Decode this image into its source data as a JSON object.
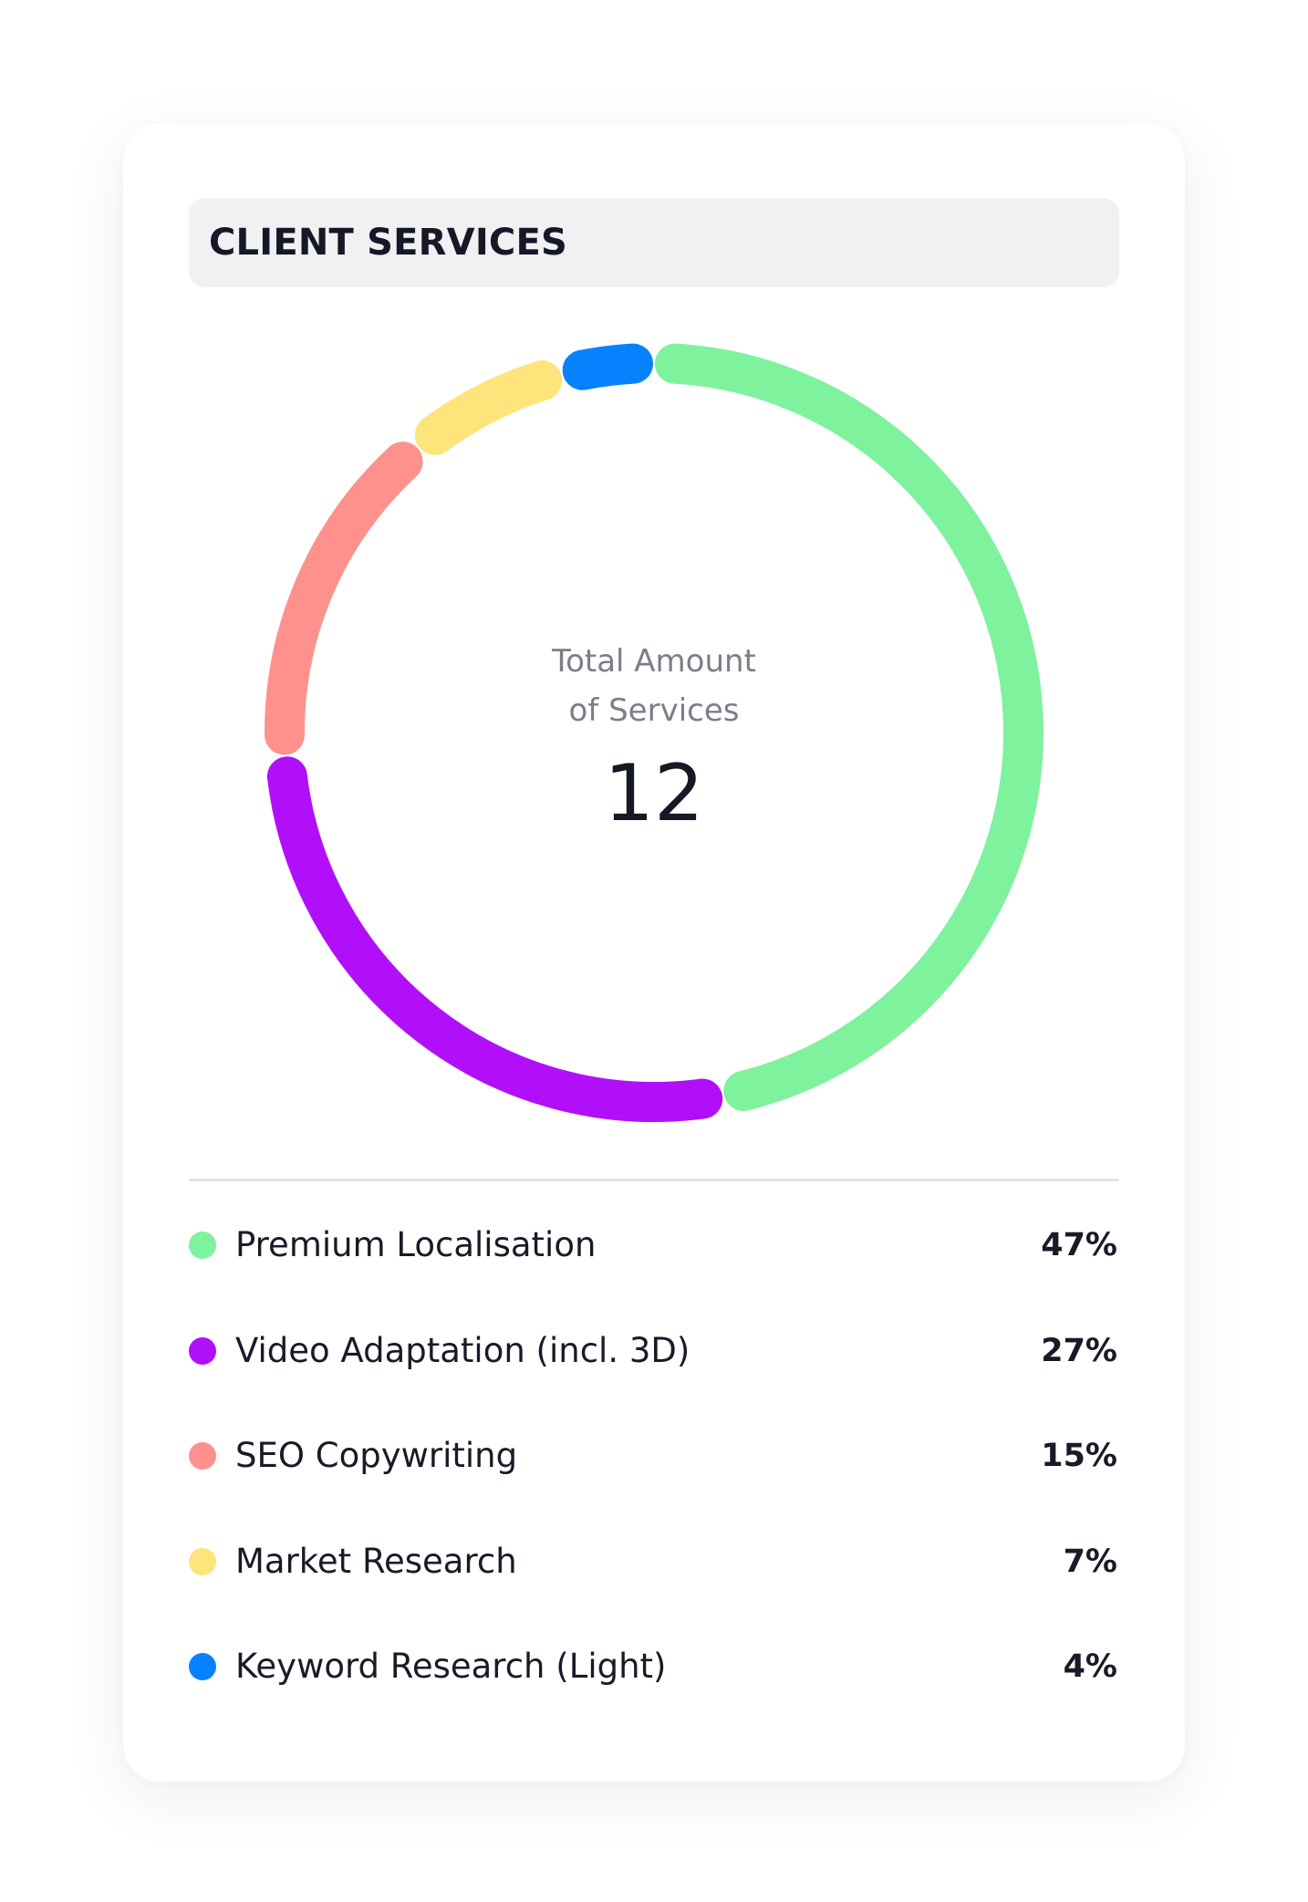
{
  "card": {
    "title": "CLIENT SERVICES"
  },
  "chart_data": {
    "type": "pie",
    "style": "donut",
    "center_label": "Total Amount of Services",
    "center_label_lines": [
      "Total Amount",
      "of Services"
    ],
    "center_value": "12",
    "categories": [
      "Premium Localisation",
      "Video Adaptation (incl. 3D)",
      "SEO Copywriting",
      "Market Research",
      "Keyword Research (Light)"
    ],
    "values": [
      47,
      27,
      15,
      7,
      4
    ],
    "value_labels": [
      "47%",
      "27%",
      "15%",
      "7%",
      "4%"
    ],
    "colors": [
      "#7ef29d",
      "#b10ff9",
      "#fe918c",
      "#fde47b",
      "#0682fe"
    ],
    "legend_position": "bottom"
  }
}
